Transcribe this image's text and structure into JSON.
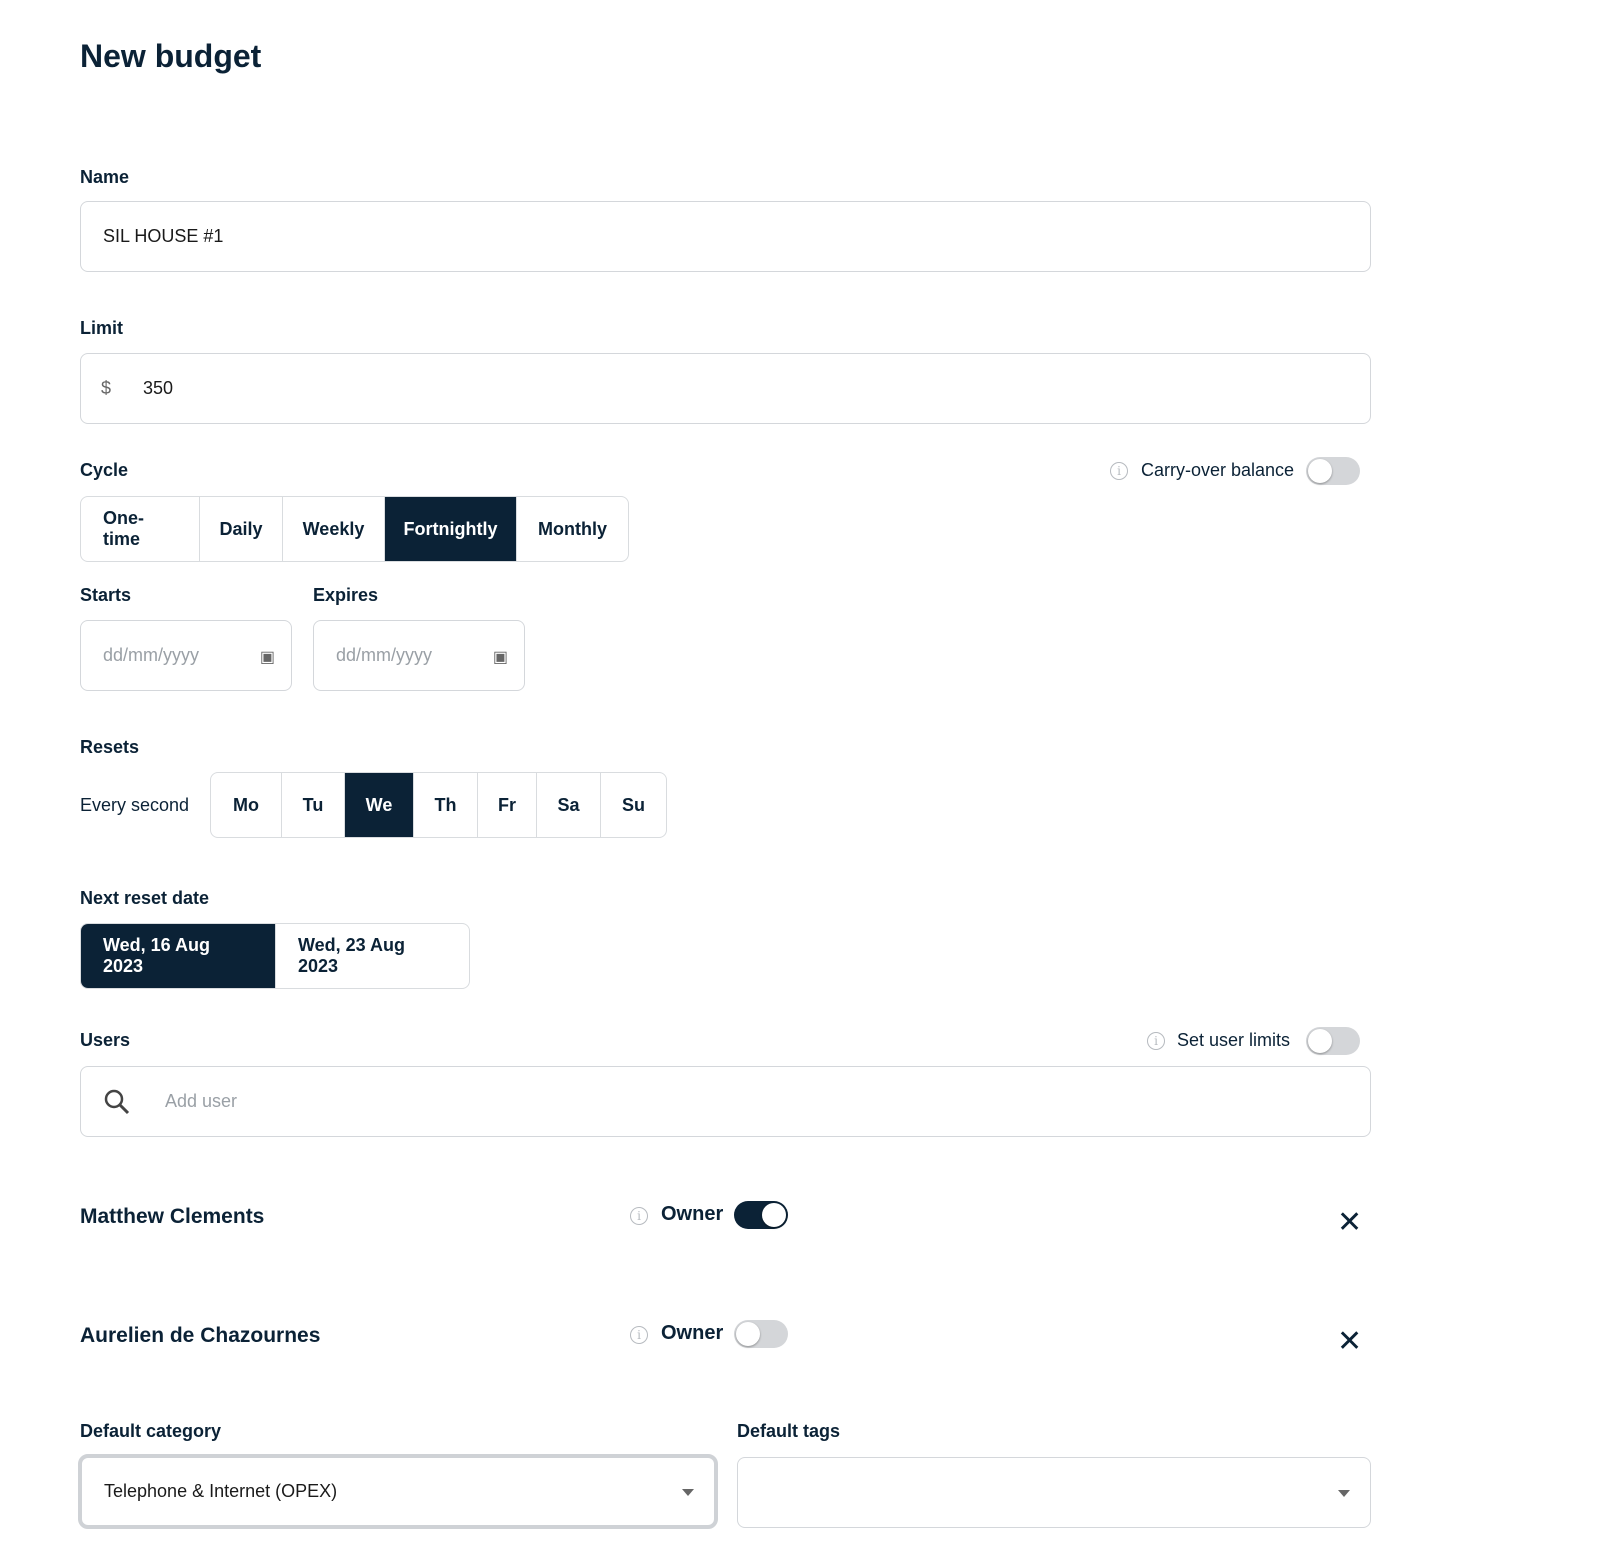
{
  "title": "New budget",
  "name": {
    "label": "Name",
    "value": "SIL HOUSE #1"
  },
  "limit": {
    "label": "Limit",
    "currency": "$",
    "value": "350"
  },
  "cycle": {
    "label": "Cycle",
    "options": [
      "One-time",
      "Daily",
      "Weekly",
      "Fortnightly",
      "Monthly"
    ],
    "selected": "Fortnightly",
    "carry_over_label": "Carry-over balance",
    "carry_over": false
  },
  "starts": {
    "label": "Starts",
    "placeholder": "dd/mm/yyyy"
  },
  "expires": {
    "label": "Expires",
    "placeholder": "dd/mm/yyyy"
  },
  "resets": {
    "label": "Resets",
    "prefix": "Every second",
    "days": [
      "Mo",
      "Tu",
      "We",
      "Th",
      "Fr",
      "Sa",
      "Su"
    ],
    "selected": "We"
  },
  "next_reset": {
    "label": "Next reset date",
    "options": [
      "Wed, 16 Aug 2023",
      "Wed, 23 Aug 2023"
    ],
    "selected": "Wed, 16 Aug 2023"
  },
  "users": {
    "label": "Users",
    "set_limits_label": "Set user limits",
    "set_limits": false,
    "search_placeholder": "Add user",
    "list": [
      {
        "name": "Matthew Clements",
        "owner_label": "Owner",
        "owner": true
      },
      {
        "name": "Aurelien de Chazournes",
        "owner_label": "Owner",
        "owner": false
      }
    ]
  },
  "default_category": {
    "label": "Default category",
    "value": "Telephone & Internet (OPEX)"
  },
  "default_tags": {
    "label": "Default tags",
    "value": ""
  },
  "colors": {
    "primary": "#0b2236",
    "border": "#d4d7db"
  }
}
